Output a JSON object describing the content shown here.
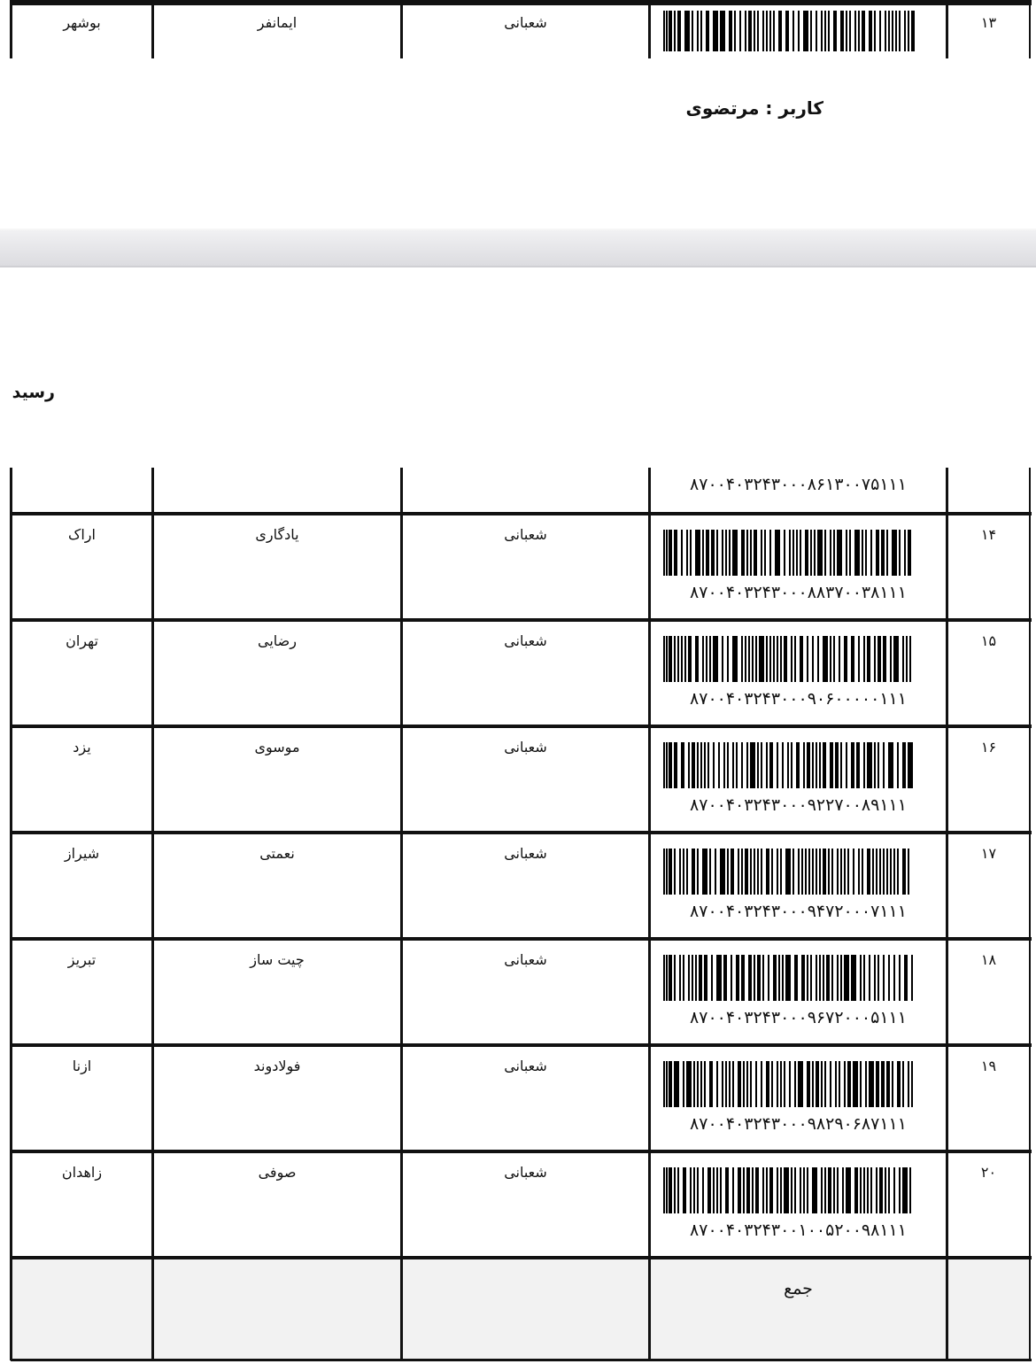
{
  "top_row": {
    "index": "۱۳",
    "col2": "شعبانی",
    "col3": "ایمانفر",
    "col4": "بوشهر"
  },
  "user_label": "کاربر : مرتضوی",
  "receipt_title": "رسید",
  "prev_barcode_number": "۸۷۰۰۴۰۳۲۴۳۰۰۰۸۶۱۳۰۰۷۵۱۱۱",
  "rows": [
    {
      "index": "۱۴",
      "barcode": "۸۷۰۰۴۰۳۲۴۳۰۰۰۸۸۳۷۰۰۳۸۱۱۱",
      "col2": "شعبانی",
      "col3": "یادگاری",
      "col4": "اراک"
    },
    {
      "index": "۱۵",
      "barcode": "۸۷۰۰۴۰۳۲۴۳۰۰۰۹۰۶۰۰۰۰۰۱۱۱",
      "col2": "شعبانی",
      "col3": "رضایی",
      "col4": "تهران"
    },
    {
      "index": "۱۶",
      "barcode": "۸۷۰۰۴۰۳۲۴۳۰۰۰۹۲۲۷۰۰۸۹۱۱۱",
      "col2": "شعبانی",
      "col3": "موسوی",
      "col4": "یزد"
    },
    {
      "index": "۱۷",
      "barcode": "۸۷۰۰۴۰۳۲۴۳۰۰۰۹۴۷۲۰۰۰۷۱۱۱",
      "col2": "شعبانی",
      "col3": "نعمتی",
      "col4": "شیراز"
    },
    {
      "index": "۱۸",
      "barcode": "۸۷۰۰۴۰۳۲۴۳۰۰۰۹۶۷۲۰۰۰۵۱۱۱",
      "col2": "شعبانی",
      "col3": "چیت ساز",
      "col4": "تبریز"
    },
    {
      "index": "۱۹",
      "barcode": "۸۷۰۰۴۰۳۲۴۳۰۰۰۹۸۲۹۰۶۸۷۱۱۱",
      "col2": "شعبانی",
      "col3": "فولادوند",
      "col4": "ازنا"
    },
    {
      "index": "۲۰",
      "barcode": "۸۷۰۰۴۰۳۲۴۳۰۰۱۰۰۵۲۰۰۹۸۱۱۱",
      "col2": "شعبانی",
      "col3": "صوفی",
      "col4": "زاهدان"
    }
  ],
  "total_label": "جمع"
}
